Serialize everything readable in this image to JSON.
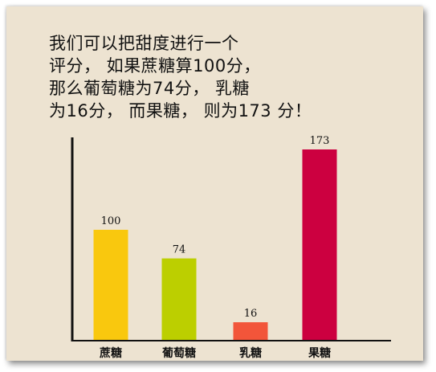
{
  "paragraph": {
    "lines": [
      "我们可以把甜度进行一个",
      "评分，  如果蔗糖算100分，",
      "那么葡萄糖为74分，  乳糖",
      "为16分，  而果糖，  则为173  分！"
    ]
  },
  "chart_data": {
    "type": "bar",
    "categories": [
      "蔗糖",
      "葡萄糖",
      "乳糖",
      "果糖"
    ],
    "values": [
      100,
      74,
      16,
      173
    ],
    "value_labels": [
      "100",
      "74",
      "16",
      "173"
    ],
    "colors": [
      "#f9c80e",
      "#bccf00",
      "#f2553a",
      "#cc0040"
    ],
    "title": "",
    "xlabel": "",
    "ylabel": "",
    "ylim": [
      0,
      173
    ],
    "grid": false,
    "legend": "none"
  }
}
